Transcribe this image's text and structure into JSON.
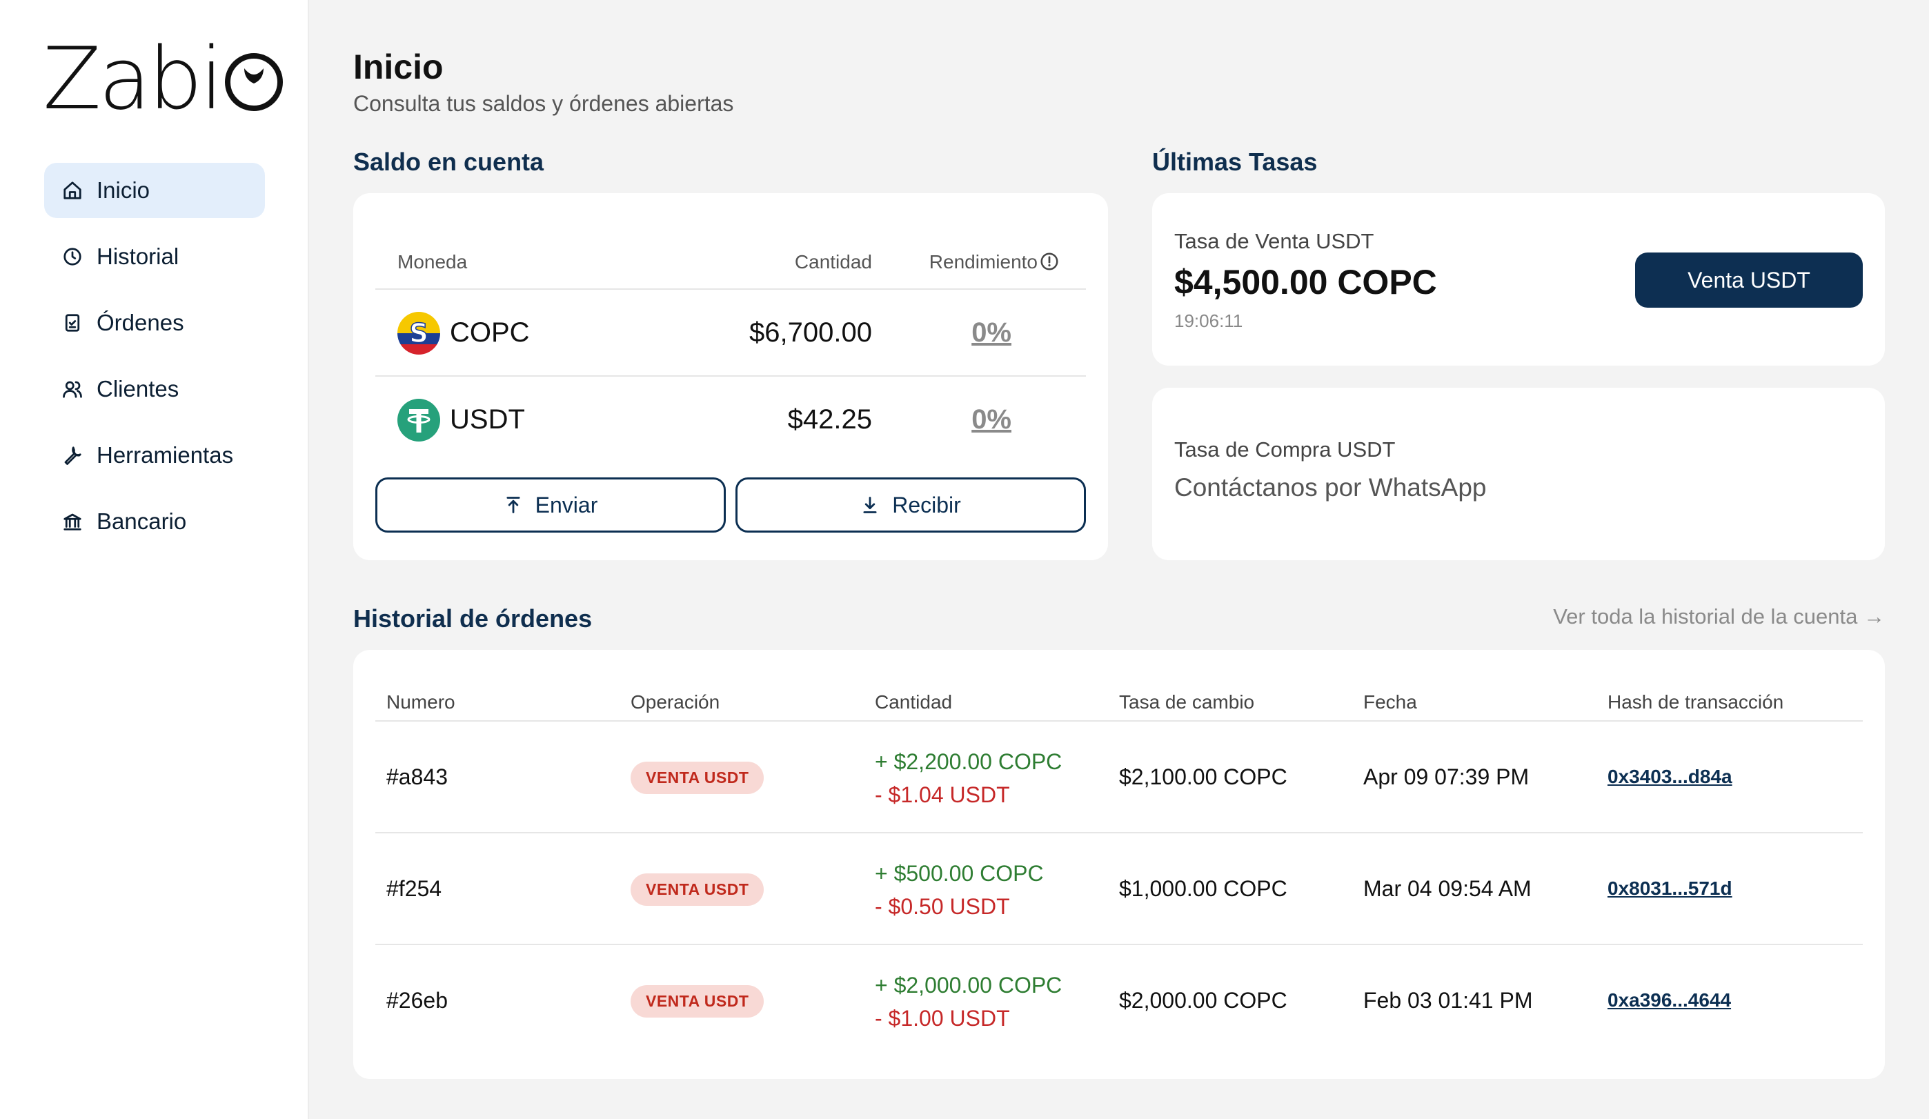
{
  "brand": {
    "name_prefix": "Zabi",
    "accent": "#0d2f52"
  },
  "nav": {
    "items": [
      {
        "label": "Inicio",
        "icon": "home-icon",
        "active": true
      },
      {
        "label": "Historial",
        "icon": "clock-icon"
      },
      {
        "label": "Órdenes",
        "icon": "clipboard-check-icon"
      },
      {
        "label": "Clientes",
        "icon": "users-icon"
      },
      {
        "label": "Herramientas",
        "icon": "wrench-icon"
      },
      {
        "label": "Bancario",
        "icon": "bank-icon"
      }
    ]
  },
  "header": {
    "title": "Inicio",
    "subtitle": "Consulta tus saldos y órdenes abiertas"
  },
  "balance": {
    "title": "Saldo en cuenta",
    "col_currency": "Moneda",
    "col_amount": "Cantidad",
    "col_yield": "Rendimiento",
    "rows": [
      {
        "currency": "COPC",
        "amount": "$6,700.00",
        "yield": "0%",
        "icon": "copc-coin-icon"
      },
      {
        "currency": "USDT",
        "amount": "$42.25",
        "yield": "0%",
        "icon": "tether-coin-icon"
      }
    ],
    "send_label": "Enviar",
    "receive_label": "Recibir"
  },
  "rates": {
    "title": "Últimas Tasas",
    "sell_label": "Tasa de Venta USDT",
    "sell_value": "$4,500.00 COPC",
    "sell_time": "19:06:11",
    "sell_button": "Venta USDT",
    "buy_label": "Tasa de Compra USDT",
    "buy_value": "Contáctanos por WhatsApp"
  },
  "orders": {
    "title": "Historial de órdenes",
    "view_all": "Ver toda la historial de la cuenta →",
    "columns": [
      "Numero",
      "Operación",
      "Cantidad",
      "Tasa de cambio",
      "Fecha",
      "Hash de transacción"
    ],
    "rows": [
      {
        "id": "#a843",
        "op": "VENTA USDT",
        "plus": "+ $2,200.00 COPC",
        "minus": "- $1.04 USDT",
        "rate": "$2,100.00 COPC",
        "date": "Apr 09 07:39 PM",
        "hash": "0x3403...d84a"
      },
      {
        "id": "#f254",
        "op": "VENTA USDT",
        "plus": "+ $500.00 COPC",
        "minus": "- $0.50 USDT",
        "rate": "$1,000.00 COPC",
        "date": "Mar 04 09:54 AM",
        "hash": "0x8031...571d"
      },
      {
        "id": "#26eb",
        "op": "VENTA USDT",
        "plus": "+ $2,000.00 COPC",
        "minus": "- $1.00 USDT",
        "rate": "$2,000.00 COPC",
        "date": "Feb 03 01:41 PM",
        "hash": "0xa396...4644"
      }
    ]
  }
}
